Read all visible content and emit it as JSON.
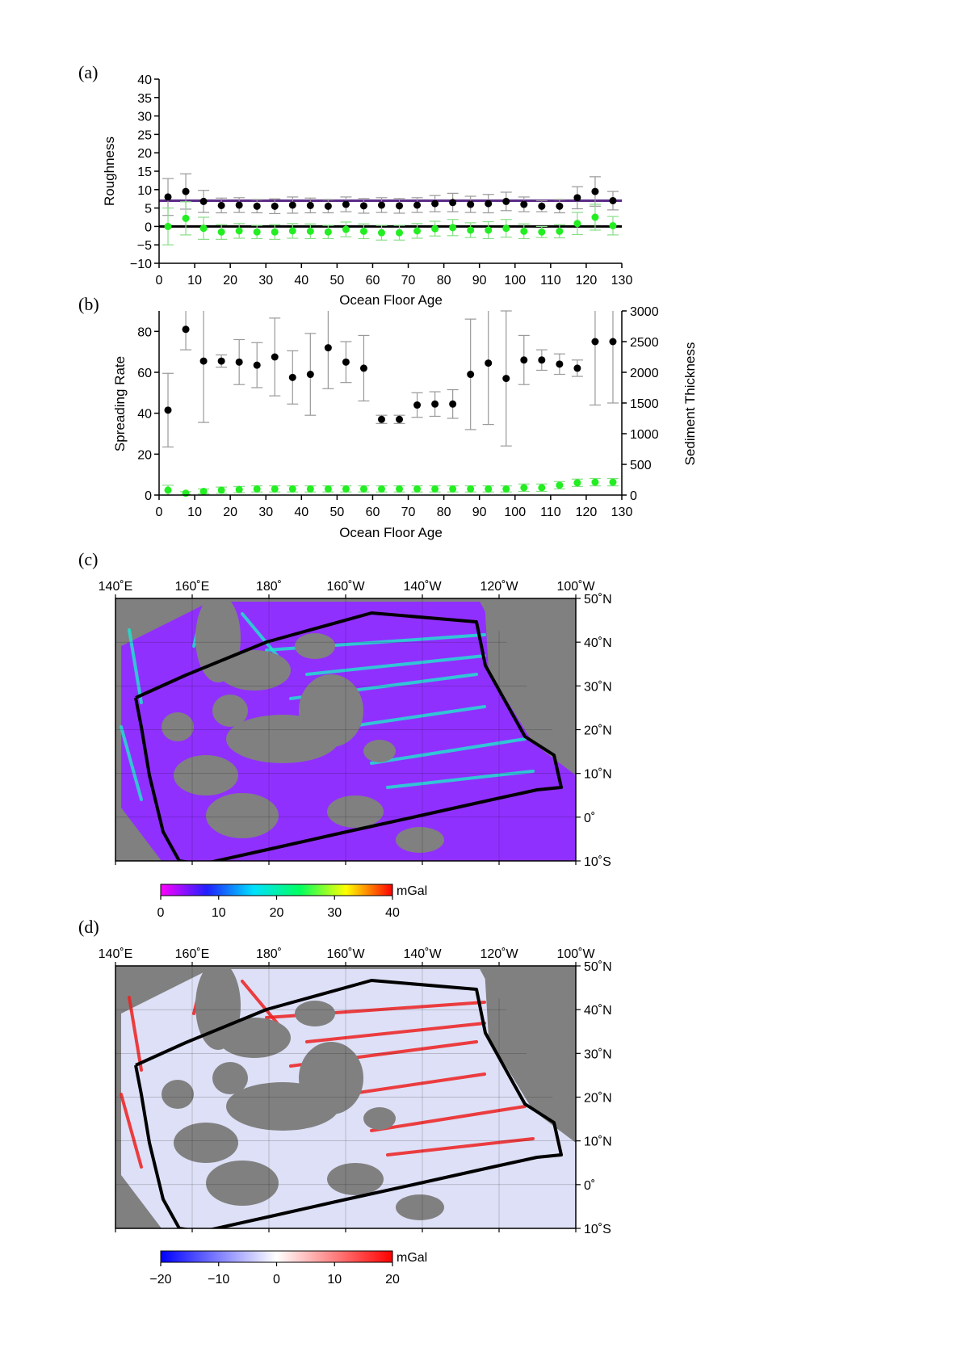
{
  "colors": {
    "black_points": "#000000",
    "green_points": "#22ee22",
    "error_bars": "#999999",
    "purple_line": "#5b2a86",
    "land": "#808080",
    "track_polygon": "#000000"
  },
  "chart_data": [
    {
      "id": "a",
      "panel_label": "(a)",
      "type": "scatter",
      "xlabel": "Ocean Floor Age",
      "ylabel": "Roughness",
      "xlim": [
        0,
        130
      ],
      "ylim": [
        -10,
        40
      ],
      "xticks": [
        0,
        10,
        20,
        30,
        40,
        50,
        60,
        70,
        80,
        90,
        100,
        110,
        120,
        130
      ],
      "yticks": [
        -10,
        -5,
        0,
        5,
        10,
        15,
        20,
        25,
        30,
        35,
        40
      ],
      "ytick_labels": [
        "−10",
        "−5",
        "0",
        "5",
        "10",
        "15",
        "20",
        "25",
        "30",
        "35",
        "40"
      ],
      "hlines": [
        {
          "y": 7.0,
          "color": "#5b2a86"
        },
        {
          "y": 0.0,
          "color": "#000000"
        }
      ],
      "series": [
        {
          "color": "#000000",
          "x": [
            2.5,
            7.5,
            12.5,
            17.5,
            22.5,
            27.5,
            32.5,
            37.5,
            42.5,
            47.5,
            52.5,
            57.5,
            62.5,
            67.5,
            72.5,
            77.5,
            82.5,
            87.5,
            92.5,
            97.5,
            102.5,
            107.5,
            112.5,
            117.5,
            122.5,
            127.5
          ],
          "y": [
            8,
            9.5,
            6.8,
            5.7,
            5.8,
            5.5,
            5.5,
            5.8,
            5.7,
            5.5,
            6,
            5.6,
            5.8,
            5.6,
            5.8,
            6.2,
            6.5,
            6,
            6.2,
            6.8,
            6,
            5.5,
            5.5,
            7.8,
            9.5,
            7
          ],
          "err": [
            5,
            4.8,
            3,
            2,
            2,
            1.8,
            2,
            2.2,
            2,
            1.8,
            2,
            2,
            2,
            2,
            2,
            2.2,
            2.5,
            2.2,
            2.5,
            2.5,
            2,
            1.5,
            1.8,
            3,
            4,
            2.5
          ]
        },
        {
          "color": "#22ee22",
          "x": [
            2.5,
            7.5,
            12.5,
            17.5,
            22.5,
            27.5,
            32.5,
            37.5,
            42.5,
            47.5,
            52.5,
            57.5,
            62.5,
            67.5,
            72.5,
            77.5,
            82.5,
            87.5,
            92.5,
            97.5,
            102.5,
            107.5,
            112.5,
            117.5,
            122.5,
            127.5
          ],
          "y": [
            0,
            2.2,
            -0.5,
            -1.5,
            -1.2,
            -1.5,
            -1.5,
            -1.2,
            -1.3,
            -1.5,
            -0.8,
            -1.3,
            -1.7,
            -1.7,
            -1.2,
            -0.6,
            -0.3,
            -1,
            -1,
            -0.5,
            -1.3,
            -1.5,
            -1.3,
            0.8,
            2.5,
            0.2
          ],
          "err": [
            5,
            4.5,
            3,
            2,
            2,
            1.8,
            2,
            2,
            2,
            1.8,
            2,
            2,
            2,
            2,
            2,
            2,
            2.2,
            2,
            2.3,
            2.4,
            2,
            1.5,
            1.8,
            3,
            3.5,
            2.5
          ]
        }
      ]
    },
    {
      "id": "b",
      "panel_label": "(b)",
      "type": "scatter",
      "xlabel": "Ocean Floor Age",
      "ylabel": "Spreading Rate",
      "y2label": "Sediment Thickness",
      "xlim": [
        0,
        130
      ],
      "ylim": [
        0,
        90
      ],
      "y2lim": [
        0,
        3000
      ],
      "xticks": [
        0,
        10,
        20,
        30,
        40,
        50,
        60,
        70,
        80,
        90,
        100,
        110,
        120,
        130
      ],
      "yticks": [
        0,
        20,
        40,
        60,
        80
      ],
      "y2ticks": [
        0,
        500,
        1000,
        1500,
        2000,
        2500,
        3000
      ],
      "series": [
        {
          "color": "#000000",
          "axis": "left",
          "x": [
            2.5,
            7.5,
            12.5,
            17.5,
            22.5,
            27.5,
            32.5,
            37.5,
            42.5,
            47.5,
            52.5,
            57.5,
            62.5,
            67.5,
            72.5,
            77.5,
            82.5,
            87.5,
            92.5,
            97.5,
            102.5,
            107.5,
            112.5,
            117.5,
            122.5,
            127.5
          ],
          "y": [
            41.5,
            81,
            65.5,
            65.5,
            65,
            63.5,
            67.5,
            57.5,
            59,
            72,
            65,
            62,
            37,
            37,
            44,
            44.5,
            44.5,
            59,
            64.5,
            57,
            66,
            66,
            64,
            62,
            75,
            75
          ],
          "err": [
            18,
            10,
            30,
            3,
            11,
            11,
            19,
            13,
            20,
            20,
            10,
            16,
            2,
            2,
            6,
            6,
            7,
            27,
            30,
            33,
            12,
            5,
            5,
            4,
            31,
            30
          ]
        },
        {
          "color": "#22ee22",
          "axis": "right",
          "x": [
            2.5,
            7.5,
            12.5,
            17.5,
            22.5,
            27.5,
            32.5,
            37.5,
            42.5,
            47.5,
            52.5,
            57.5,
            62.5,
            67.5,
            72.5,
            77.5,
            82.5,
            87.5,
            92.5,
            97.5,
            102.5,
            107.5,
            112.5,
            117.5,
            122.5,
            127.5
          ],
          "y": [
            80,
            30,
            60,
            80,
            90,
            100,
            100,
            100,
            100,
            100,
            100,
            100,
            100,
            100,
            100,
            100,
            100,
            100,
            100,
            100,
            120,
            120,
            160,
            200,
            210,
            210
          ],
          "err": [
            80,
            25,
            40,
            50,
            50,
            50,
            50,
            50,
            50,
            50,
            50,
            50,
            50,
            50,
            50,
            50,
            50,
            50,
            50,
            50,
            60,
            60,
            60,
            60,
            60,
            60
          ]
        }
      ]
    }
  ],
  "maps": [
    {
      "id": "c",
      "panel_label": "(c)",
      "lon_labels": [
        "140˚E",
        "160˚E",
        "180˚",
        "160˚W",
        "140˚W",
        "120˚W",
        "100˚W"
      ],
      "lat_labels": [
        "50˚N",
        "40˚N",
        "30˚N",
        "20˚N",
        "10˚N",
        "0˚",
        "10˚S"
      ],
      "colorbar": {
        "unit": "mGal",
        "ticks": [
          "0",
          "10",
          "20",
          "30",
          "40"
        ],
        "colors": [
          "#ff00ff",
          "#2020ff",
          "#00e0ff",
          "#00ff60",
          "#ffff00",
          "#ff0000"
        ]
      },
      "water_color": "#9030ff"
    },
    {
      "id": "d",
      "panel_label": "(d)",
      "lon_labels": [
        "140˚E",
        "160˚E",
        "180˚",
        "160˚W",
        "140˚W",
        "120˚W",
        "100˚W"
      ],
      "lat_labels": [
        "50˚N",
        "40˚N",
        "30˚N",
        "20˚N",
        "10˚N",
        "0˚",
        "10˚S"
      ],
      "colorbar": {
        "unit": "mGal",
        "ticks": [
          "−20",
          "−10",
          "0",
          "10",
          "20"
        ],
        "colors": [
          "#0000ff",
          "#ffffff",
          "#ff0000"
        ]
      },
      "water_color": "#dde0f6"
    }
  ]
}
